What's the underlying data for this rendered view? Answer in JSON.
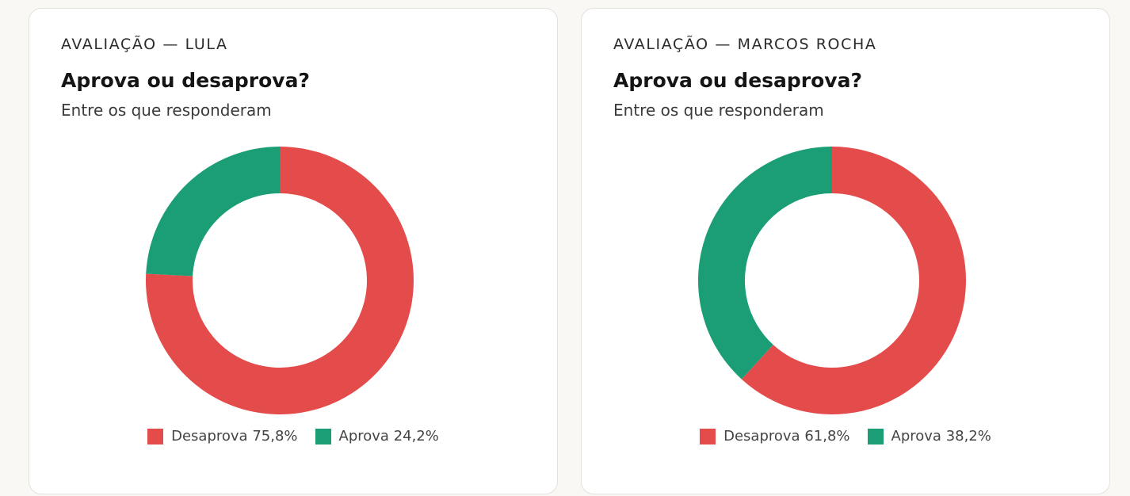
{
  "colors": {
    "desaprova": "#e44b4b",
    "aprova": "#1b9e75"
  },
  "chart_data": [
    {
      "type": "pie",
      "kicker": "AVALIAÇÃO — LULA",
      "title": "Aprova ou desaprova?",
      "subtitle": "Entre os que responderam",
      "slices": [
        {
          "name": "Desaprova",
          "value": 75.8,
          "label": "75,8%",
          "color": "#e44b4b"
        },
        {
          "name": "Aprova",
          "value": 24.2,
          "label": "24,2%",
          "color": "#1b9e75"
        }
      ],
      "legend": "bottom-center"
    },
    {
      "type": "pie",
      "kicker": "AVALIAÇÃO — MARCOS ROCHA",
      "title": "Aprova ou desaprova?",
      "subtitle": "Entre os que responderam",
      "slices": [
        {
          "name": "Desaprova",
          "value": 61.8,
          "label": "61,8%",
          "color": "#e44b4b"
        },
        {
          "name": "Aprova",
          "value": 38.2,
          "label": "38,2%",
          "color": "#1b9e75"
        }
      ],
      "legend": "bottom-center"
    }
  ]
}
